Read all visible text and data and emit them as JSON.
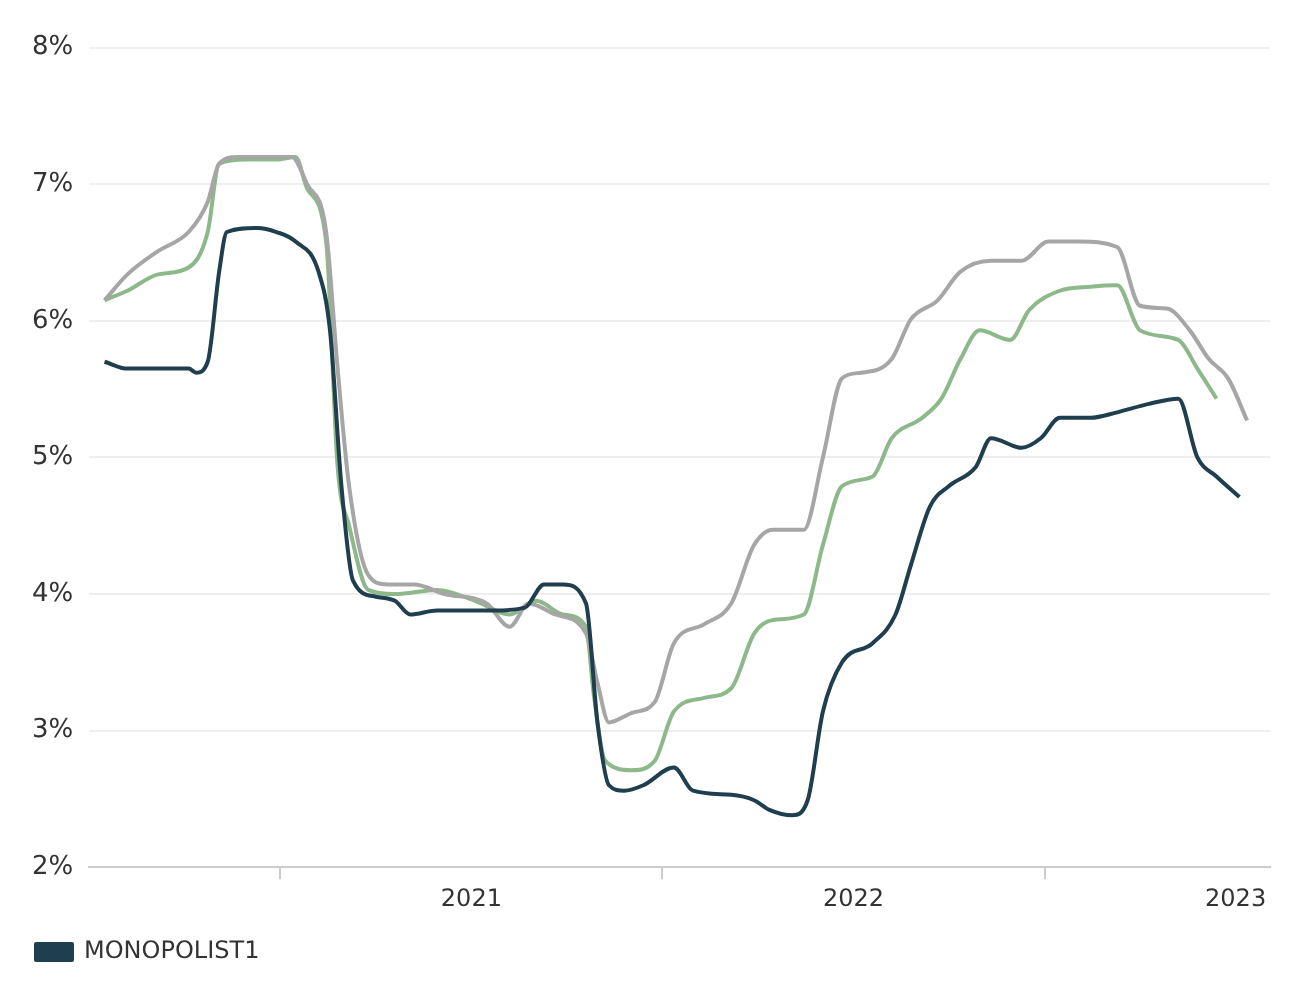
{
  "chart_data": {
    "type": "line",
    "xlim": [
      2020,
      2023.09
    ],
    "xticks": [
      {
        "value": 2020.5,
        "label": null
      },
      2021,
      {
        "value": 2021.5,
        "label": null
      },
      2022,
      {
        "value": 2022.5,
        "label": null
      },
      2023
    ],
    "ylim": [
      2,
      8
    ],
    "yticks": [
      {
        "value": 2,
        "label": "2%"
      },
      {
        "value": 3,
        "label": "3%"
      },
      {
        "value": 4,
        "label": "4%"
      },
      {
        "value": 5,
        "label": "5%"
      },
      {
        "value": 6,
        "label": "6%"
      },
      {
        "value": 7,
        "label": "7%"
      },
      {
        "value": 8,
        "label": "8%"
      }
    ],
    "grid": "y",
    "legend": "bottom left",
    "marker": "none",
    "line_style": "solid",
    "series": [
      {
        "name": "MONOPOLIST1",
        "color": "#1f3f4f",
        "x": [
          2020.04,
          2020.1,
          2020.26,
          2020.28,
          2020.31,
          2020.34,
          2020.36,
          2020.44,
          2020.49,
          2020.54,
          2020.6,
          2020.63,
          2020.66,
          2020.69,
          2020.75,
          2020.8,
          2020.84,
          2020.91,
          2020.98,
          2021.06,
          2021.14,
          2021.19,
          2021.24,
          2021.3,
          2021.33,
          2021.36,
          2021.4,
          2021.45,
          2021.53,
          2021.58,
          2021.68,
          2021.74,
          2021.78,
          2021.84,
          2021.88,
          2021.92,
          2021.97,
          2022.05,
          2022.11,
          2022.15,
          2022.2,
          2022.25,
          2022.32,
          2022.36,
          2022.44,
          2022.49,
          2022.54,
          2022.62,
          2022.69,
          2022.77,
          2022.85,
          2022.9,
          2022.95,
          2023.01
        ],
        "values": [
          5.7,
          5.65,
          5.65,
          5.62,
          5.7,
          6.36,
          6.65,
          6.68,
          6.65,
          6.58,
          6.36,
          5.93,
          4.79,
          4.1,
          3.98,
          3.95,
          3.85,
          3.88,
          3.88,
          3.88,
          3.9,
          4.07,
          4.07,
          3.93,
          3.06,
          2.6,
          2.56,
          2.6,
          2.73,
          2.56,
          2.53,
          2.49,
          2.42,
          2.38,
          2.49,
          3.14,
          3.5,
          3.64,
          3.85,
          4.21,
          4.64,
          4.79,
          4.93,
          5.14,
          5.07,
          5.14,
          5.29,
          5.29,
          5.33,
          5.39,
          5.43,
          5.0,
          4.86,
          4.71
        ]
      },
      {
        "color": "#a6a6a6",
        "x": [
          2020.04,
          2020.1,
          2020.18,
          2020.26,
          2020.31,
          2020.34,
          2020.39,
          2020.47,
          2020.53,
          2020.57,
          2020.62,
          2020.65,
          2020.68,
          2020.73,
          2020.78,
          2020.85,
          2020.93,
          2021.04,
          2021.1,
          2021.15,
          2021.22,
          2021.3,
          2021.33,
          2021.36,
          2021.42,
          2021.48,
          2021.53,
          2021.61,
          2021.68,
          2021.74,
          2021.79,
          2021.87,
          2021.92,
          2021.97,
          2022.02,
          2022.1,
          2022.15,
          2022.22,
          2022.28,
          2022.36,
          2022.44,
          2022.51,
          2022.59,
          2022.69,
          2022.75,
          2022.82,
          2022.88,
          2022.93,
          2022.98,
          2023.03
        ],
        "values": [
          6.15,
          6.34,
          6.51,
          6.65,
          6.87,
          7.15,
          7.2,
          7.2,
          7.2,
          7.0,
          6.65,
          5.65,
          4.79,
          4.14,
          4.07,
          4.07,
          4.0,
          3.93,
          3.76,
          3.93,
          3.85,
          3.71,
          3.35,
          3.06,
          3.13,
          3.21,
          3.64,
          3.78,
          3.93,
          4.36,
          4.47,
          4.47,
          5.0,
          5.58,
          5.62,
          5.72,
          6.01,
          6.15,
          6.36,
          6.44,
          6.44,
          6.58,
          6.58,
          6.54,
          6.11,
          6.09,
          5.93,
          5.72,
          5.58,
          5.27
        ]
      },
      {
        "color": "#8db88a",
        "x": [
          2020.04,
          2020.1,
          2020.18,
          2020.26,
          2020.31,
          2020.34,
          2020.41,
          2020.49,
          2020.54,
          2020.57,
          2020.62,
          2020.65,
          2020.68,
          2020.73,
          2020.8,
          2020.91,
          2021.01,
          2021.1,
          2021.17,
          2021.24,
          2021.3,
          2021.32,
          2021.35,
          2021.42,
          2021.48,
          2021.53,
          2021.61,
          2021.68,
          2021.74,
          2021.79,
          2021.87,
          2021.92,
          2021.97,
          2022.05,
          2022.1,
          2022.18,
          2022.23,
          2022.28,
          2022.33,
          2022.41,
          2022.46,
          2022.54,
          2022.62,
          2022.69,
          2022.75,
          2022.85,
          2022.9,
          2022.95
        ],
        "values": [
          6.15,
          6.22,
          6.34,
          6.39,
          6.65,
          7.15,
          7.18,
          7.18,
          7.2,
          6.97,
          6.58,
          4.93,
          4.5,
          4.03,
          4.0,
          4.03,
          3.95,
          3.85,
          3.95,
          3.85,
          3.76,
          3.27,
          2.78,
          2.71,
          2.78,
          3.14,
          3.24,
          3.31,
          3.71,
          3.81,
          3.85,
          4.36,
          4.79,
          4.86,
          5.14,
          5.29,
          5.43,
          5.72,
          5.93,
          5.86,
          6.08,
          6.22,
          6.25,
          6.26,
          5.93,
          5.86,
          5.65,
          5.43
        ]
      }
    ]
  }
}
